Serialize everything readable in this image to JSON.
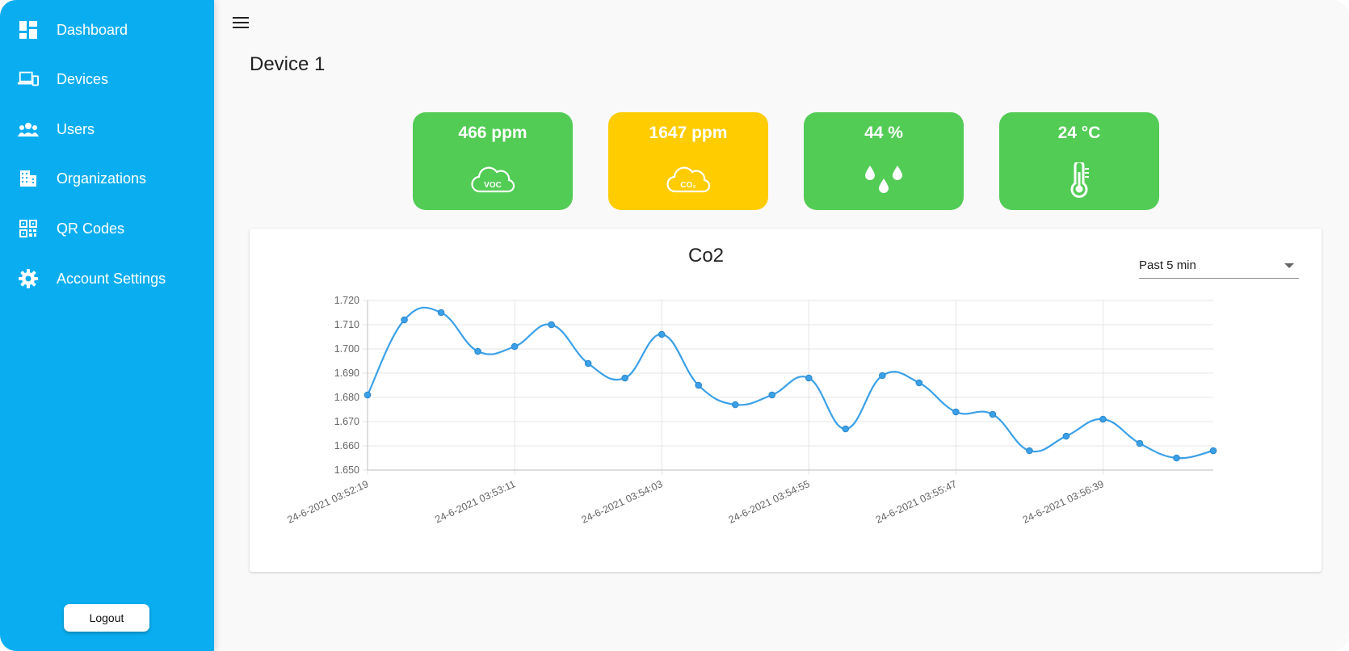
{
  "sidebar": {
    "items": [
      {
        "label": "Dashboard",
        "icon": "dashboard-icon"
      },
      {
        "label": "Devices",
        "icon": "devices-icon"
      },
      {
        "label": "Users",
        "icon": "users-icon"
      },
      {
        "label": "Organizations",
        "icon": "organizations-icon"
      },
      {
        "label": "QR Codes",
        "icon": "qr-code-icon"
      },
      {
        "label": "Account Settings",
        "icon": "gear-icon"
      }
    ],
    "logout_label": "Logout"
  },
  "header": {
    "menu_icon": "hamburger-menu-icon"
  },
  "page": {
    "title": "Device 1"
  },
  "cards": [
    {
      "value": "466 ppm",
      "icon": "voc-cloud-icon",
      "color": "#52cc55",
      "icon_text": "VOC"
    },
    {
      "value": "1647 ppm",
      "icon": "co2-cloud-icon",
      "color": "#ffcc00",
      "icon_text": "CO₂"
    },
    {
      "value": "44 %",
      "icon": "humidity-drops-icon",
      "color": "#52cc55"
    },
    {
      "value": "24 °C",
      "icon": "thermometer-icon",
      "color": "#52cc55"
    }
  ],
  "chart_panel": {
    "title": "Co2",
    "range_select": {
      "value": "Past 5 min"
    }
  },
  "colors": {
    "sidebar": "#0aaef0",
    "line": "#3aa0e8",
    "good": "#52cc55",
    "warn": "#ffcc00"
  },
  "chart_data": {
    "type": "line",
    "title": "Co2",
    "xlabel": "",
    "ylabel": "",
    "ylim": [
      1.65,
      1.72
    ],
    "yticks": [
      "1.720",
      "1.710",
      "1.700",
      "1.690",
      "1.680",
      "1.670",
      "1.660",
      "1.650"
    ],
    "x_tick_labels": [
      "24-6-2021 03:52:19",
      "24-6-2021 03:53:11",
      "24-6-2021 03:54:03",
      "24-6-2021 03:54:55",
      "24-6-2021 03:55:47",
      "24-6-2021 03:56:39"
    ],
    "x_tick_every": 4,
    "grid": true,
    "series": [
      {
        "values": [
          1.681,
          1.712,
          1.715,
          1.699,
          1.701,
          1.71,
          1.694,
          1.688,
          1.706,
          1.685,
          1.677,
          1.681,
          1.688,
          1.667,
          1.689,
          1.686,
          1.674,
          1.673,
          1.658,
          1.664,
          1.671,
          1.661,
          1.655,
          1.658
        ]
      }
    ]
  }
}
